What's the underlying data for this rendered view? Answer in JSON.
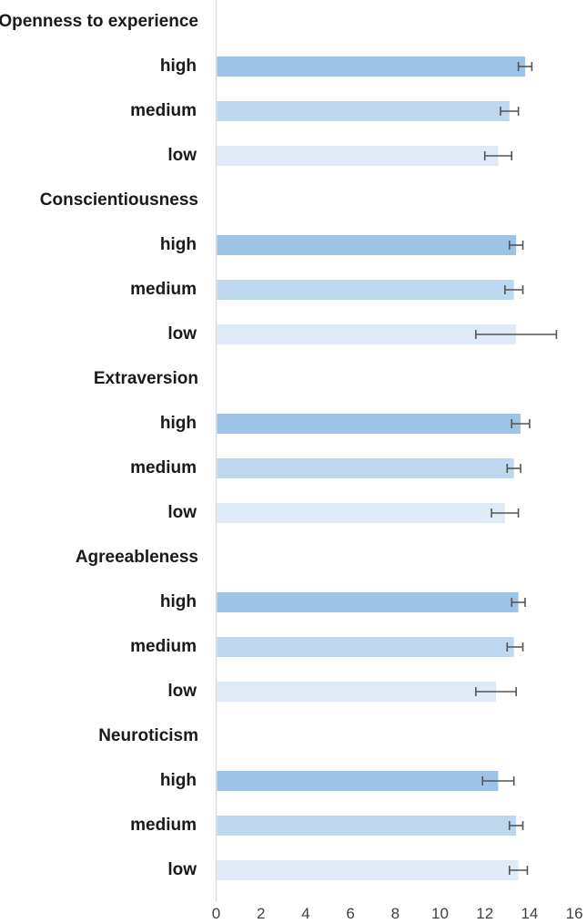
{
  "chart_data": {
    "type": "bar",
    "orientation": "horizontal",
    "title": "",
    "xlabel": "",
    "ylabel": "",
    "xlim": [
      0,
      16
    ],
    "x_ticks": [
      "0",
      "2",
      "4",
      "6",
      "8",
      "10",
      "12",
      "14",
      "16"
    ],
    "grid": false,
    "colors": {
      "high": "#9dc3e6",
      "medium": "#bdd7ee",
      "low": "#deebf7"
    },
    "groups": [
      {
        "name": "Openness to experience",
        "bars": [
          {
            "level": "high",
            "value": 13.8,
            "err_low": 13.5,
            "err_high": 14.1
          },
          {
            "level": "medium",
            "value": 13.1,
            "err_low": 12.7,
            "err_high": 13.5
          },
          {
            "level": "low",
            "value": 12.6,
            "err_low": 12.0,
            "err_high": 13.2
          }
        ]
      },
      {
        "name": "Conscientiousness",
        "bars": [
          {
            "level": "high",
            "value": 13.4,
            "err_low": 13.1,
            "err_high": 13.7
          },
          {
            "level": "medium",
            "value": 13.3,
            "err_low": 12.9,
            "err_high": 13.7
          },
          {
            "level": "low",
            "value": 13.4,
            "err_low": 11.6,
            "err_high": 15.2
          }
        ]
      },
      {
        "name": "Extraversion",
        "bars": [
          {
            "level": "high",
            "value": 13.6,
            "err_low": 13.2,
            "err_high": 14.0
          },
          {
            "level": "medium",
            "value": 13.3,
            "err_low": 13.0,
            "err_high": 13.6
          },
          {
            "level": "low",
            "value": 12.9,
            "err_low": 12.3,
            "err_high": 13.5
          }
        ]
      },
      {
        "name": "Agreeableness",
        "bars": [
          {
            "level": "high",
            "value": 13.5,
            "err_low": 13.2,
            "err_high": 13.8
          },
          {
            "level": "medium",
            "value": 13.3,
            "err_low": 13.0,
            "err_high": 13.7
          },
          {
            "level": "low",
            "value": 12.5,
            "err_low": 11.6,
            "err_high": 13.4
          }
        ]
      },
      {
        "name": "Neuroticism",
        "bars": [
          {
            "level": "high",
            "value": 12.6,
            "err_low": 11.9,
            "err_high": 13.3
          },
          {
            "level": "medium",
            "value": 13.4,
            "err_low": 13.1,
            "err_high": 13.7
          },
          {
            "level": "low",
            "value": 13.5,
            "err_low": 13.1,
            "err_high": 13.9
          }
        ]
      }
    ]
  }
}
